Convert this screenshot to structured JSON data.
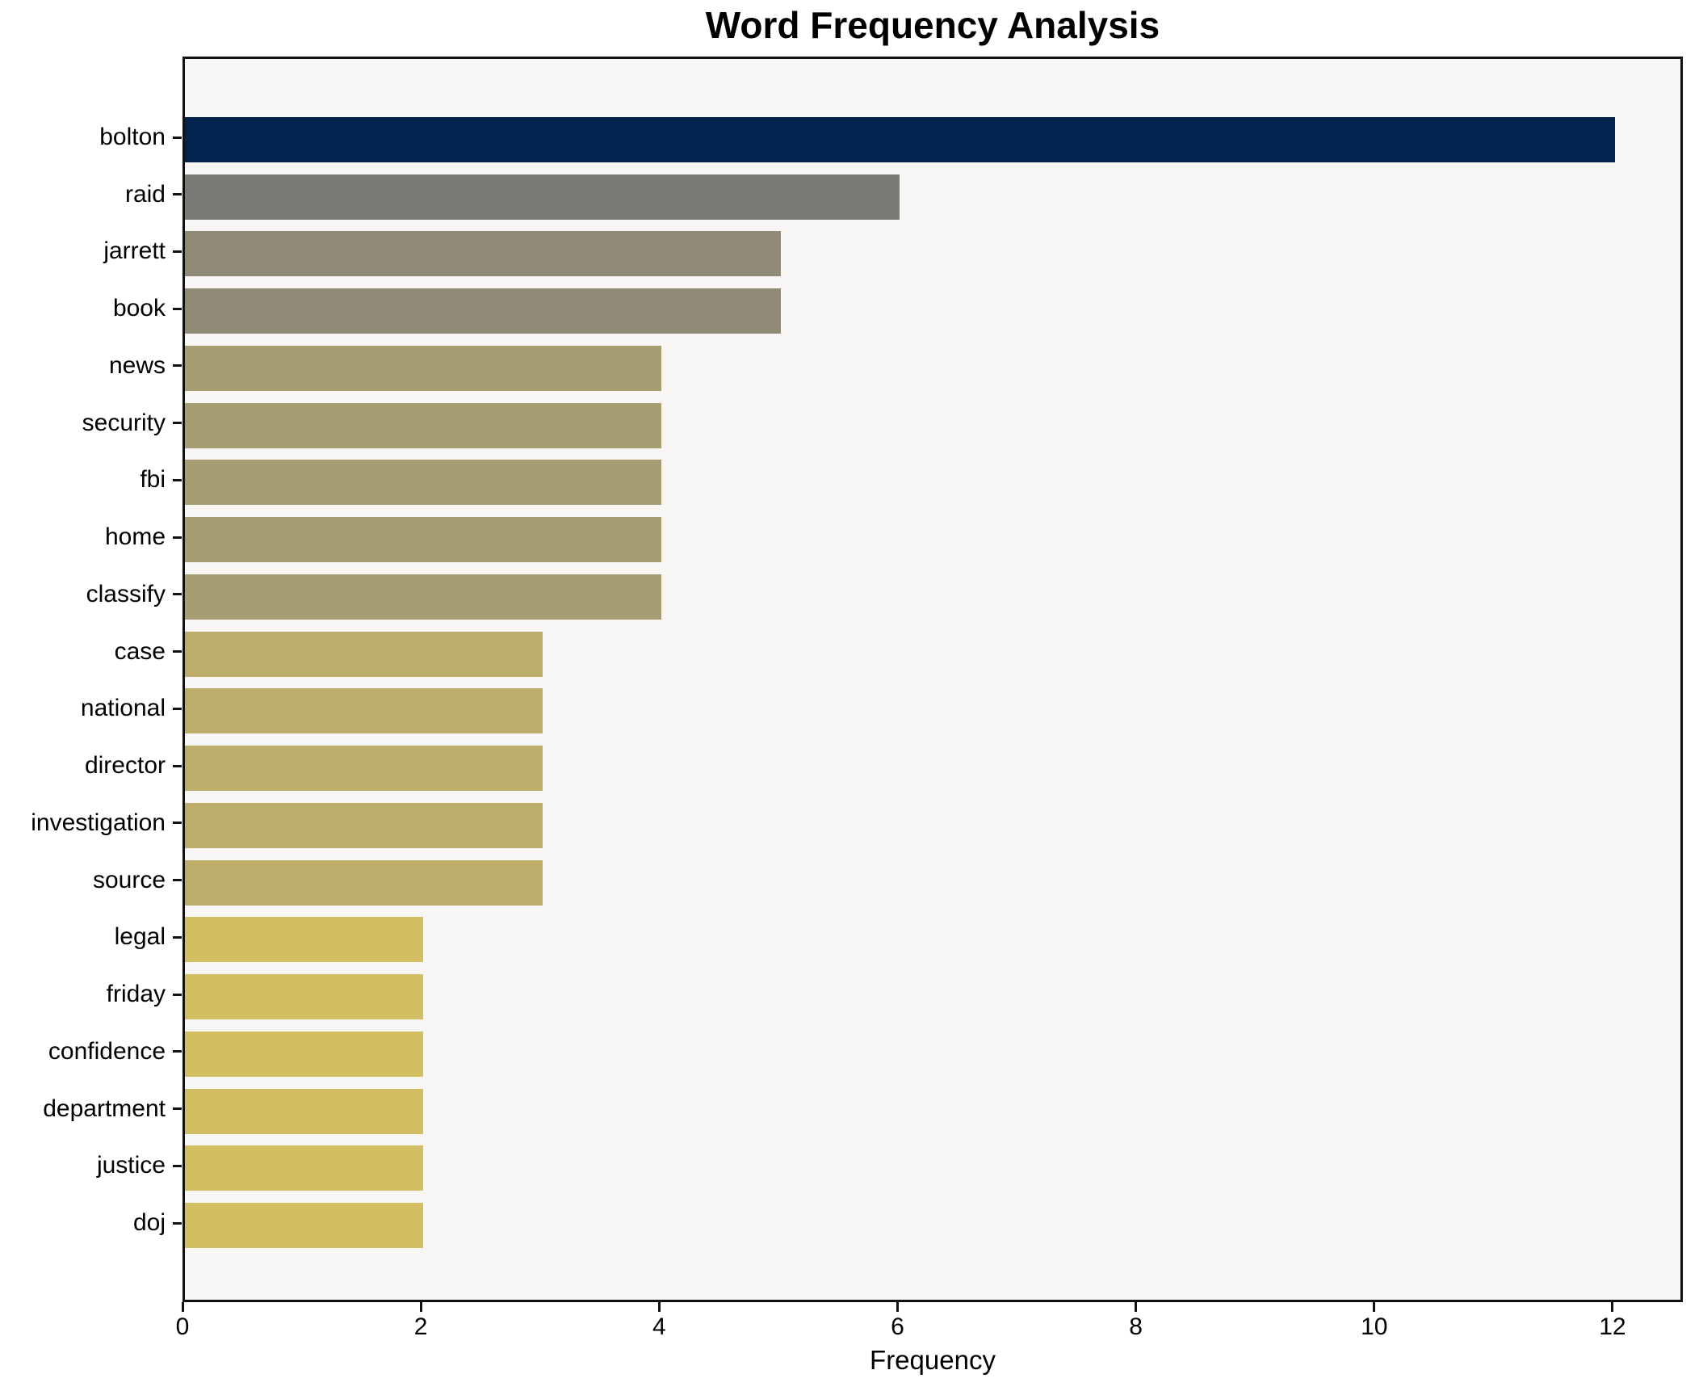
{
  "chart_data": {
    "type": "bar",
    "orientation": "horizontal",
    "title": "Word Frequency Analysis",
    "xlabel": "Frequency",
    "ylabel": "",
    "categories": [
      "bolton",
      "raid",
      "jarrett",
      "book",
      "news",
      "security",
      "fbi",
      "home",
      "classify",
      "case",
      "national",
      "director",
      "investigation",
      "source",
      "legal",
      "friday",
      "confidence",
      "department",
      "justice",
      "doj"
    ],
    "values": [
      12,
      6,
      5,
      5,
      4,
      4,
      4,
      4,
      4,
      3,
      3,
      3,
      3,
      3,
      2,
      2,
      2,
      2,
      2,
      2
    ],
    "bar_colors": [
      "#03224d",
      "#7a7a76",
      "#8f8a75",
      "#8f8a75",
      "#a79d72",
      "#a79d72",
      "#a79d72",
      "#a79d72",
      "#a79d72",
      "#bcad6b",
      "#bcad6b",
      "#bcad6b",
      "#bcad6b",
      "#bcad6b",
      "#d2bf62",
      "#d2bf62",
      "#d2bf62",
      "#d2bf62",
      "#d2bf62",
      "#d2bf62"
    ],
    "xticks": [
      0,
      2,
      4,
      6,
      8,
      10,
      12
    ],
    "xlim": [
      0,
      12.59
    ],
    "grid": false,
    "legend": false,
    "plot_background": "#f7f6f4",
    "spine_color": "#111111",
    "text_color": "#000000"
  }
}
